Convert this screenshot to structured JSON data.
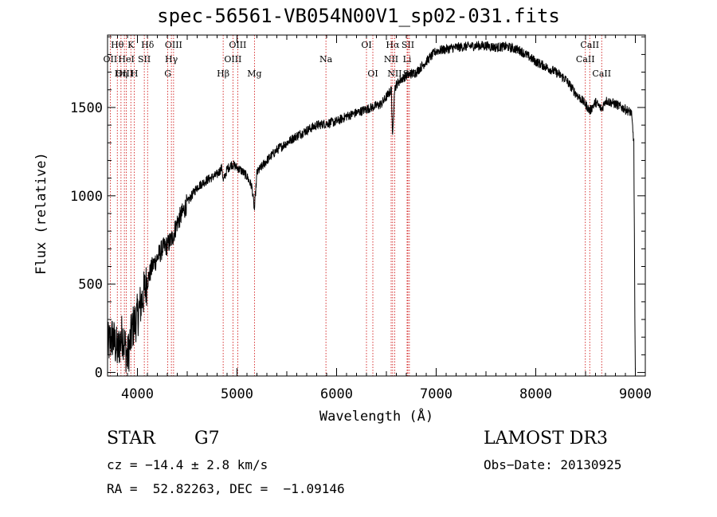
{
  "chart_data": {
    "type": "line",
    "title": "spec-56561-VB054N00V1_sp02-031.fits",
    "xlabel": "Wavelength (Å)",
    "ylabel": "Flux (relative)",
    "xlim": [
      3700,
      9100
    ],
    "ylim": [
      -20,
      1910
    ],
    "xticks": [
      4000,
      5000,
      6000,
      7000,
      8000,
      9000
    ],
    "yticks": [
      0,
      500,
      1000,
      1500
    ],
    "series": [
      {
        "name": "flux",
        "x": [
          3700,
          3750,
          3800,
          3850,
          3900,
          3950,
          4000,
          4050,
          4100,
          4150,
          4200,
          4250,
          4300,
          4350,
          4400,
          4450,
          4500,
          4600,
          4700,
          4800,
          4850,
          4861,
          4900,
          4950,
          5000,
          5050,
          5100,
          5150,
          5175,
          5200,
          5300,
          5400,
          5500,
          5600,
          5700,
          5800,
          5900,
          6000,
          6100,
          6200,
          6300,
          6400,
          6450,
          6500,
          6550,
          6563,
          6580,
          6600,
          6650,
          6700,
          6750,
          6800,
          6900,
          7000,
          7100,
          7200,
          7300,
          7400,
          7500,
          7600,
          7700,
          7800,
          7850,
          7900,
          8000,
          8100,
          8200,
          8300,
          8400,
          8498,
          8542,
          8600,
          8662,
          8700,
          8800,
          8900,
          8960,
          8985,
          8995,
          9000
        ],
        "y": [
          150,
          200,
          120,
          220,
          80,
          250,
          320,
          420,
          520,
          600,
          650,
          700,
          720,
          760,
          850,
          900,
          960,
          1050,
          1090,
          1120,
          1160,
          1080,
          1150,
          1180,
          1160,
          1140,
          1110,
          1050,
          920,
          1130,
          1200,
          1260,
          1300,
          1340,
          1370,
          1400,
          1410,
          1420,
          1450,
          1470,
          1490,
          1510,
          1520,
          1560,
          1600,
          1310,
          1600,
          1630,
          1660,
          1680,
          1690,
          1700,
          1760,
          1820,
          1830,
          1840,
          1845,
          1850,
          1850,
          1840,
          1845,
          1830,
          1820,
          1800,
          1760,
          1730,
          1700,
          1660,
          1580,
          1520,
          1480,
          1530,
          1490,
          1540,
          1520,
          1490,
          1470,
          1300,
          300,
          0
        ]
      }
    ],
    "line_labels": [
      {
        "name": "Hθ",
        "wave": 3798,
        "row": 0
      },
      {
        "name": "OII",
        "wave": 3727,
        "row": 1
      },
      {
        "name": "OIII",
        "wave": 3869,
        "row": 2
      },
      {
        "name": "K",
        "wave": 3934,
        "row": 0
      },
      {
        "name": "HeI",
        "wave": 3889,
        "row": 1
      },
      {
        "name": "Hη",
        "wave": 3835,
        "row": 2
      },
      {
        "name": "Hδ",
        "wave": 4102,
        "row": 0
      },
      {
        "name": "SII",
        "wave": 4069,
        "row": 1
      },
      {
        "name": "H",
        "wave": 3969,
        "row": 2
      },
      {
        "name": "OIII",
        "wave": 4363,
        "row": 0
      },
      {
        "name": "Hγ",
        "wave": 4341,
        "row": 1
      },
      {
        "name": "G",
        "wave": 4305,
        "row": 2
      },
      {
        "name": "Hβ",
        "wave": 4861,
        "row": 2
      },
      {
        "name": "OIII",
        "wave": 5007,
        "row": 0
      },
      {
        "name": "OIII",
        "wave": 4959,
        "row": 1
      },
      {
        "name": "Mg",
        "wave": 5175,
        "row": 2
      },
      {
        "name": "Na",
        "wave": 5893,
        "row": 1
      },
      {
        "name": "OI",
        "wave": 6300,
        "row": 0
      },
      {
        "name": "OI",
        "wave": 6364,
        "row": 2
      },
      {
        "name": "Hα",
        "wave": 6563,
        "row": 0
      },
      {
        "name": "NII",
        "wave": 6548,
        "row": 1
      },
      {
        "name": "NII",
        "wave": 6583,
        "row": 2
      },
      {
        "name": "SII",
        "wave": 6716,
        "row": 0
      },
      {
        "name": "Li",
        "wave": 6708,
        "row": 1
      },
      {
        "name": "SII",
        "wave": 6731,
        "row": 2
      },
      {
        "name": "CaII",
        "wave": 8542,
        "row": 0
      },
      {
        "name": "CaII",
        "wave": 8498,
        "row": 1
      },
      {
        "name": "CaII",
        "wave": 8662,
        "row": 2
      }
    ]
  },
  "info": {
    "class": "STAR",
    "subclass": "G7",
    "survey": "LAMOST DR3",
    "cz": "cz = −14.4 ± 2.8 km/s",
    "obs_date": "Obs−Date: 20130925",
    "radec": "RA =  52.82263, DEC =  −1.09146"
  }
}
